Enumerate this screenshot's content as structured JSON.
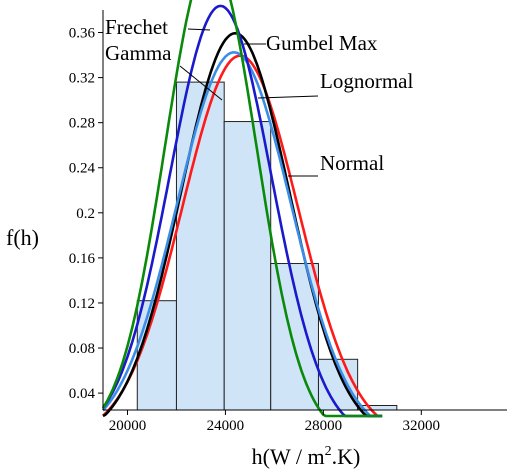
{
  "chart_data": {
    "type": "histogram",
    "xlabel": "h(W / m",
    "xlabel_sup": "2",
    "xlabel_end": ".K)",
    "ylabel": "f(h)",
    "xlim": [
      19000,
      35500
    ],
    "ylim": [
      0.025,
      0.38
    ],
    "x_ticks": [
      20000,
      24000,
      28000,
      32000
    ],
    "x_tick_labels": [
      "20000",
      "24000",
      "28000",
      "32000"
    ],
    "y_ticks": [
      0.04,
      0.08,
      0.12,
      0.16,
      0.2,
      0.24,
      0.28,
      0.32,
      0.36
    ],
    "y_tick_labels": [
      "0.04",
      "0.08",
      "0.12",
      "0.16",
      "0.2",
      "0.24",
      "0.28",
      "0.32",
      "0.36"
    ],
    "histogram": {
      "fill_color": "#cfe4f7",
      "edge_color": "#222222",
      "bins": [
        {
          "x0": 20400,
          "x1": 22000,
          "value": 0.122
        },
        {
          "x0": 22000,
          "x1": 23950,
          "value": 0.316
        },
        {
          "x0": 23950,
          "x1": 25850,
          "value": 0.281
        },
        {
          "x0": 25850,
          "x1": 27800,
          "value": 0.155
        },
        {
          "x0": 27800,
          "x1": 29400,
          "value": 0.07
        },
        {
          "x0": 29400,
          "x1": 31000,
          "value": 0.029
        }
      ]
    },
    "series": [
      {
        "name": "Normal",
        "color": "#ff1a1a",
        "dist": "normal",
        "mean": 24600,
        "sd": 2350
      },
      {
        "name": "Lognormal",
        "color": "#000000",
        "dist": "normal",
        "mean": 24400,
        "sd": 2220
      },
      {
        "name": "Gamma",
        "color": "#3b8ee8",
        "dist": "normal",
        "mean": 24350,
        "sd": 2330
      },
      {
        "name": "Gumbel Max",
        "color": "#1a1acc",
        "dist": "normal",
        "mean": 23800,
        "sd": 2080
      },
      {
        "name": "Frechet",
        "color": "#0a8a0a",
        "dist": "normal",
        "mean": 23400,
        "sd": 1870
      }
    ],
    "annotations": [
      {
        "label": "Frechet",
        "series": "Frechet"
      },
      {
        "label": "Gamma",
        "series": "Gamma"
      },
      {
        "label": "Gumbel Max",
        "series": "Gumbel Max"
      },
      {
        "label": "Lognormal",
        "series": "Lognormal"
      },
      {
        "label": "Normal",
        "series": "Normal"
      }
    ]
  }
}
